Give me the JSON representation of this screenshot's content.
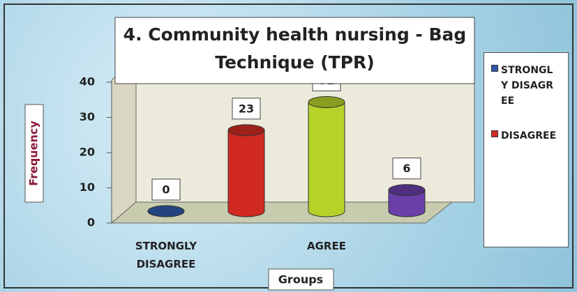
{
  "chart_data": {
    "type": "bar",
    "title": "4. Community health nursing - Bag Technique (TPR)",
    "y_label": "Frequency",
    "x_label": "Groups",
    "categories": [
      "STRONGLY DISAGREE",
      null,
      "AGREE",
      null
    ],
    "values": [
      0,
      23,
      31,
      6
    ],
    "colors": [
      "#2f5aa8",
      "#d12a22",
      "#b5d22a",
      "#6a3fa8"
    ],
    "ylim": [
      0,
      40
    ],
    "yticks": [
      0,
      10,
      20,
      30,
      40
    ],
    "legend": [
      "STRONGLY DISAGREE",
      "DISAGREE"
    ]
  }
}
